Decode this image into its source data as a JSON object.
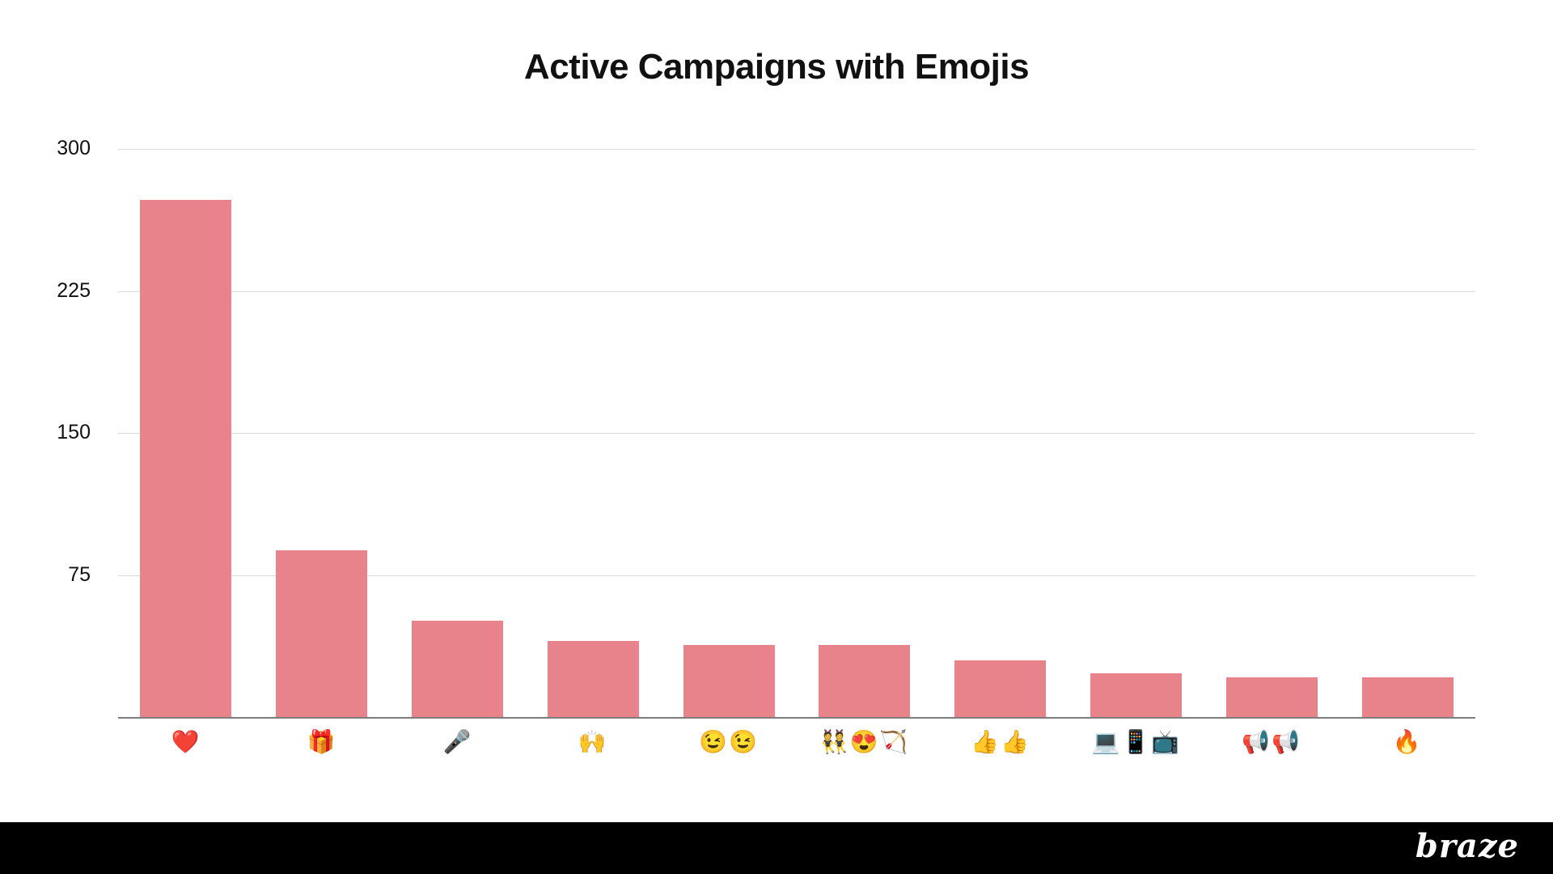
{
  "title": "Active Campaigns with Emojis",
  "footer": {
    "brand": "braze"
  },
  "colors": {
    "bar": "#e8828b",
    "gridline": "#d9d9d9",
    "axis_line": "#7d7d7d",
    "title_text": "#111111",
    "footer_bg": "#000000",
    "brand_text": "#ffffff"
  },
  "chart_data": {
    "type": "bar",
    "title": "Active Campaigns with Emojis",
    "categories": [
      "❤️",
      "🎁",
      "🎤",
      "🙌",
      "😉😉",
      "👯😍🏹",
      "👍👍",
      "💻📱📺",
      "📢📢",
      "🔥"
    ],
    "category_names": [
      "red-heart",
      "gift",
      "microphone",
      "raising-hands",
      "wink-wink",
      "dancers-heart-eyes-bow",
      "thumbs-up-x2",
      "laptop-phone-tv",
      "loudspeaker-x2",
      "fire"
    ],
    "values": [
      273,
      88,
      51,
      40,
      38,
      38,
      30,
      23,
      21,
      21
    ],
    "xlabel": "",
    "ylabel": "",
    "yticks": [
      75,
      150,
      225,
      300
    ],
    "ylim": [
      0,
      300
    ],
    "grid": true,
    "legend": false,
    "bar_color": "#e8828b"
  }
}
